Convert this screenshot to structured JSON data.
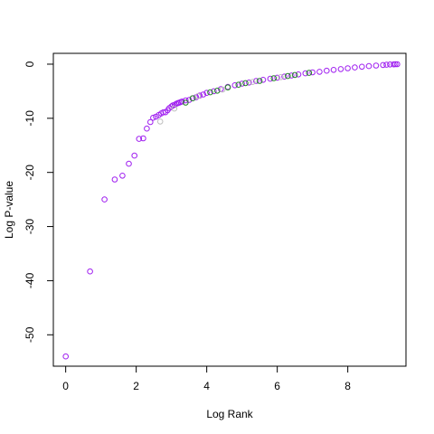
{
  "chart_data": {
    "type": "scatter",
    "title": "",
    "xlabel": "Log Rank",
    "ylabel": "Log P-value",
    "xlim": [
      -0.35,
      9.65
    ],
    "ylim": [
      -55.8,
      2.0
    ],
    "xticks": [
      0,
      2,
      4,
      6,
      8
    ],
    "yticks": [
      0,
      -10,
      -20,
      -30,
      -40,
      -50
    ],
    "xtick_labels": [
      "0",
      "2",
      "4",
      "6",
      "8"
    ],
    "ytick_labels": [
      "0",
      "-10",
      "-20",
      "-30",
      "-40",
      "-50"
    ],
    "grid": false,
    "legend": false,
    "marker": "open-circle",
    "colors": {
      "purple": "#a020f0",
      "green": "#228b22",
      "gray": "#bebebe"
    },
    "series": [
      {
        "color": "purple",
        "x": [
          0.0,
          0.69,
          1.1,
          1.39,
          1.61,
          1.79,
          1.95,
          2.08,
          2.2,
          2.3,
          2.4,
          2.48,
          2.56,
          2.64,
          2.71,
          2.77,
          2.83,
          2.89,
          2.94,
          3.0,
          3.04,
          3.09,
          3.14,
          3.18,
          3.22,
          3.26,
          3.3,
          3.4,
          3.5,
          3.6,
          3.7,
          3.8,
          3.9,
          4.0,
          4.2,
          4.4,
          4.6,
          4.8,
          5.0,
          5.2,
          5.4,
          5.6,
          5.8,
          6.0,
          6.2,
          6.4,
          6.6,
          6.8,
          7.0,
          7.2,
          7.4,
          7.6,
          7.8,
          8.0,
          8.2,
          8.4,
          8.6,
          8.8,
          9.0,
          9.1,
          9.2,
          9.3,
          9.35,
          9.4
        ],
        "y": [
          -54.0,
          -38.3,
          -25.0,
          -21.3,
          -20.6,
          -18.4,
          -16.9,
          -13.8,
          -13.7,
          -11.9,
          -10.7,
          -9.9,
          -9.7,
          -9.4,
          -9.1,
          -8.9,
          -8.9,
          -8.5,
          -8.1,
          -7.8,
          -7.6,
          -7.5,
          -7.3,
          -7.2,
          -7.1,
          -7.0,
          -6.9,
          -6.7,
          -6.6,
          -6.3,
          -6.1,
          -5.8,
          -5.6,
          -5.3,
          -5.0,
          -4.6,
          -4.2,
          -3.9,
          -3.6,
          -3.4,
          -3.1,
          -2.9,
          -2.7,
          -2.5,
          -2.3,
          -2.1,
          -1.9,
          -1.7,
          -1.5,
          -1.4,
          -1.2,
          -1.05,
          -0.9,
          -0.75,
          -0.6,
          -0.48,
          -0.36,
          -0.25,
          -0.15,
          -0.1,
          -0.06,
          -0.03,
          -0.01,
          0.0
        ]
      },
      {
        "color": "green",
        "x": [
          3.4,
          3.6,
          4.1,
          4.3,
          4.6,
          4.9,
          5.1,
          5.5,
          5.9,
          6.3,
          6.5,
          6.9
        ],
        "y": [
          -7.1,
          -6.3,
          -5.2,
          -4.9,
          -4.3,
          -3.8,
          -3.5,
          -3.1,
          -2.6,
          -2.2,
          -2.0,
          -1.6
        ]
      },
      {
        "color": "gray",
        "x": [
          2.68,
          3.08,
          3.75,
          4.45,
          5.3,
          6.1
        ],
        "y": [
          -10.6,
          -8.2,
          -5.9,
          -4.7,
          -3.3,
          -2.4
        ]
      }
    ]
  }
}
